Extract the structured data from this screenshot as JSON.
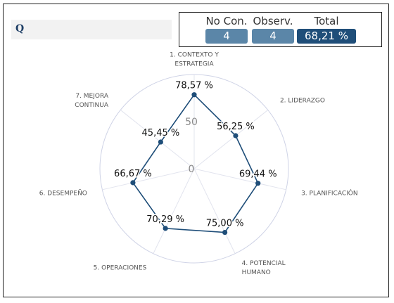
{
  "header": {
    "title": "Q",
    "stats": [
      {
        "label": "No Con.",
        "value": "4",
        "color": "#5b86a8"
      },
      {
        "label": "Observ.",
        "value": "4",
        "color": "#5b86a8"
      },
      {
        "label": "Total",
        "value": "68,21 %",
        "color": "#1f4e79"
      }
    ]
  },
  "chart_data": {
    "type": "radar",
    "rmax": 100,
    "ticks": [
      {
        "value": 0,
        "label": "0"
      },
      {
        "value": 50,
        "label": "50"
      }
    ],
    "categories": [
      [
        "1. CONTEXTO Y",
        "ESTRATEGIA"
      ],
      [
        "2. LIDERAZGO"
      ],
      [
        "3. PLANIFICACIÓN"
      ],
      [
        "4. POTENCIAL",
        "HUMANO"
      ],
      [
        "5. OPERACIONES"
      ],
      [
        "6. DESEMPEÑO"
      ],
      [
        "7. MEJORA",
        "CONTINUA"
      ]
    ],
    "series": [
      {
        "values": [
          78.57,
          56.25,
          69.44,
          75.0,
          70.29,
          66.67,
          45.45
        ],
        "labels": [
          "78,57 %",
          "56,25 %",
          "69,44 %",
          "75,00 %",
          "70,29 %",
          "66,67 %",
          "45,45 %"
        ],
        "color": "#1f4e79"
      }
    ]
  }
}
